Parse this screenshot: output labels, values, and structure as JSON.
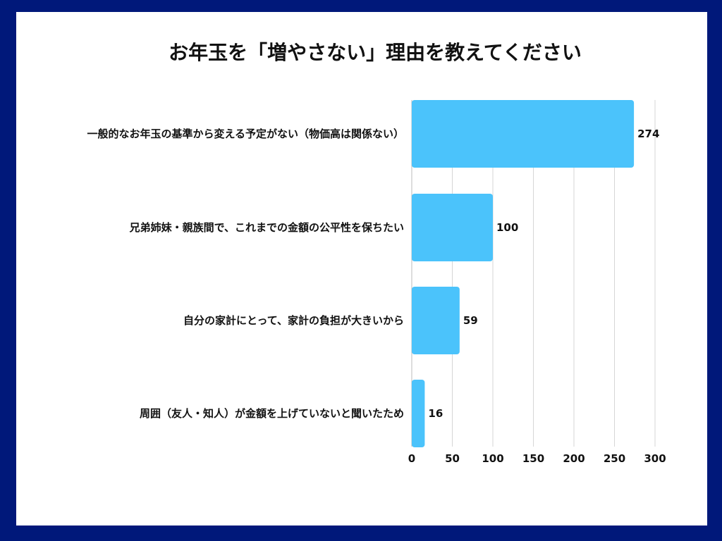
{
  "chart_data": {
    "type": "bar",
    "orientation": "horizontal",
    "title": "お年玉を「増やさない」理由を教えてください",
    "categories": [
      "一般的なお年玉の基準から変える予定がない（物価高は関係ない）",
      "兄弟姉妹・親族間で、これまでの金額の公平性を保ちたい",
      "自分の家計にとって、家計の負担が大きいから",
      "周囲（友人・知人）が金額を上げていないと聞いたため"
    ],
    "values": [
      274,
      100,
      59,
      16
    ],
    "value_labels": [
      "274",
      "100",
      "59",
      "16"
    ],
    "xlim": [
      0,
      300
    ],
    "xticks": [
      0,
      50,
      100,
      150,
      200,
      250,
      300
    ],
    "xtick_labels": [
      "0",
      "50",
      "100",
      "150",
      "200",
      "250",
      "300"
    ],
    "grid": "vertical",
    "bar_color": "#4bc3fb"
  },
  "colors": {
    "frame": "#00187a",
    "background": "#ffffff",
    "bar": "#4bc3fb",
    "grid": "#d6d6d6"
  }
}
